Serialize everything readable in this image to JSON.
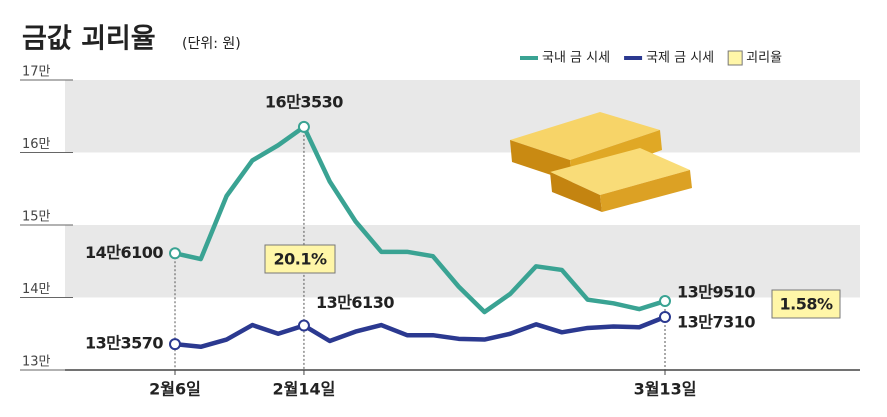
{
  "chart_data": {
    "type": "line",
    "title": "금값 괴리율",
    "subtitle": "(단위: 원)",
    "categories": [
      "2월6일",
      null,
      null,
      null,
      null,
      "2월14일",
      null,
      null,
      null,
      null,
      null,
      null,
      null,
      null,
      null,
      null,
      null,
      null,
      null,
      "3월13일"
    ],
    "series": [
      {
        "name": "국내 금 시세",
        "color": "#3aa393",
        "values": [
          146100,
          145300,
          154000,
          158900,
          161000,
          163530,
          156000,
          150500,
          146300,
          146300,
          145700,
          141500,
          138000,
          140500,
          144300,
          143800,
          139700,
          139200,
          138400,
          139510
        ],
        "value_labels": [
          "14만6100",
          null,
          null,
          null,
          null,
          "16만3530",
          null,
          null,
          null,
          null,
          null,
          null,
          null,
          null,
          null,
          null,
          null,
          null,
          null,
          "13만9510"
        ]
      },
      {
        "name": "국제 금 시세",
        "color": "#2b3990",
        "values": [
          133570,
          133200,
          134200,
          136200,
          135000,
          136130,
          134000,
          135300,
          136200,
          134800,
          134800,
          134300,
          134200,
          135000,
          136300,
          135200,
          135800,
          136000,
          135900,
          137310
        ],
        "value_labels": [
          "13만3570",
          null,
          null,
          null,
          null,
          "13만6130",
          null,
          null,
          null,
          null,
          null,
          null,
          null,
          null,
          null,
          null,
          null,
          null,
          null,
          "13만7310"
        ]
      }
    ],
    "gap_legend": {
      "name": "괴리율",
      "color": "#fff6a8"
    },
    "annotations": [
      "20.1%",
      "1.58%"
    ],
    "ylim": [
      130000,
      170000
    ],
    "yticks": [
      {
        "value": 130000,
        "label": "13만"
      },
      {
        "value": 140000,
        "label": "14만"
      },
      {
        "value": 150000,
        "label": "15만"
      },
      {
        "value": 160000,
        "label": "16만"
      },
      {
        "value": 170000,
        "label": "17만"
      }
    ],
    "grid": true
  }
}
